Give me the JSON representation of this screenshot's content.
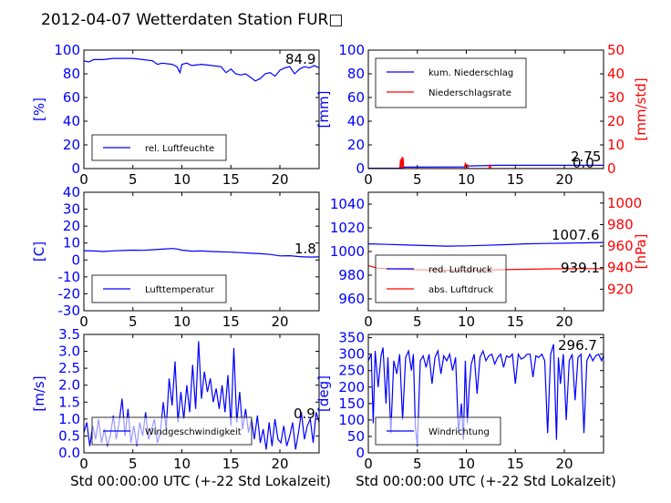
{
  "title": "2012-04-07 Wetterdaten Station FUR□",
  "xlabel": "Std 00:00:00 UTC (+-22 Std Lokalzeit)",
  "colors": {
    "blue": "#0000ff",
    "red": "#ff0000",
    "light_blue": "#8080ff"
  },
  "chart_data": [
    {
      "id": "humidity",
      "type": "line",
      "xlim": [
        0,
        24
      ],
      "xticks": [
        0,
        5,
        10,
        15,
        20
      ],
      "ylim": [
        0,
        100
      ],
      "yticks": [
        0,
        20,
        40,
        60,
        80,
        100
      ],
      "ylabel": "[%]",
      "last_value": "84.9",
      "series": [
        {
          "name": "rel. Luftfeuchte",
          "axis": "left",
          "color": "#0000ff",
          "x": [
            0,
            0.5,
            1,
            2,
            3,
            4,
            5,
            6,
            7,
            7.5,
            8,
            9,
            9.5,
            9.8,
            10,
            10.5,
            11,
            12,
            13,
            14,
            14.5,
            15,
            15.5,
            16,
            16.5,
            17,
            17.5,
            18,
            18.5,
            19,
            19.5,
            20,
            20.5,
            21,
            21.5,
            22,
            22.5,
            23,
            23.5,
            24
          ],
          "y": [
            91,
            90,
            92,
            92,
            93,
            93,
            93,
            92,
            91,
            88,
            89,
            88,
            86,
            81,
            88,
            89,
            87,
            88,
            87,
            86,
            81,
            84,
            80,
            79,
            80,
            77,
            74,
            76,
            80,
            81,
            78,
            83,
            85,
            86,
            80,
            84,
            86,
            85,
            87,
            85
          ]
        }
      ]
    },
    {
      "id": "precipitation",
      "type": "line",
      "xlim": [
        0,
        24
      ],
      "xticks": [
        0,
        5,
        10,
        15,
        20
      ],
      "ylim": [
        0,
        100
      ],
      "yticks": [
        0,
        20,
        40,
        60,
        80,
        100
      ],
      "ylabel": "[mm]",
      "y2lim": [
        0,
        50
      ],
      "y2ticks": [
        0,
        10,
        20,
        30,
        40,
        50
      ],
      "y2label": "[mm/std]",
      "last_values": [
        "2.75",
        "0.0"
      ],
      "series": [
        {
          "name": "kum. Niederschlag",
          "axis": "left",
          "color": "#0000ff",
          "x": [
            0,
            3.2,
            3.6,
            9.8,
            10.2,
            12.5,
            13,
            24
          ],
          "y": [
            0.3,
            0.3,
            1.2,
            1.4,
            2.2,
            2.6,
            2.75,
            2.75
          ]
        },
        {
          "name": "Niederschlagsrate",
          "axis": "right",
          "color": "#ff0000",
          "x": [
            0,
            3.2,
            3.3,
            3.35,
            3.45,
            3.5,
            3.55,
            3.6,
            3.7,
            9.8,
            9.9,
            10,
            10.1,
            10.2,
            12.3,
            12.4,
            12.5,
            12.6,
            24
          ],
          "y": [
            0,
            0,
            4,
            0.5,
            5,
            0.4,
            4.5,
            0.3,
            0,
            0,
            2.5,
            0.4,
            1.8,
            0,
            0,
            1.5,
            0.3,
            0,
            0
          ]
        }
      ]
    },
    {
      "id": "temperature",
      "type": "line",
      "xlim": [
        0,
        24
      ],
      "xticks": [
        0,
        5,
        10,
        15,
        20
      ],
      "ylim": [
        -30,
        40
      ],
      "yticks": [
        -30,
        -20,
        -10,
        0,
        10,
        20,
        30,
        40
      ],
      "ylabel": "[C]",
      "last_value": "1.8",
      "series": [
        {
          "name": "Lufttemperatur",
          "axis": "left",
          "color": "#0000ff",
          "x": [
            0,
            1,
            2,
            3,
            4,
            5,
            6,
            7,
            8,
            9,
            9.5,
            10,
            11,
            12,
            13,
            14,
            15,
            16,
            17,
            18,
            19,
            20,
            21,
            22,
            23,
            24
          ],
          "y": [
            5.5,
            5.3,
            5.0,
            5.4,
            5.6,
            5.8,
            5.7,
            6.0,
            6.4,
            6.8,
            6.5,
            5.8,
            5.2,
            5.3,
            5.0,
            4.8,
            4.6,
            4.3,
            4.0,
            3.7,
            3.3,
            2.4,
            2.5,
            2.0,
            1.7,
            1.8
          ]
        }
      ]
    },
    {
      "id": "pressure",
      "type": "line",
      "xlim": [
        0,
        24
      ],
      "xticks": [
        0,
        5,
        10,
        15,
        20
      ],
      "ylim": [
        950,
        1050
      ],
      "yticks": [
        960,
        980,
        1000,
        1020,
        1040
      ],
      "y2lim": [
        900,
        1010
      ],
      "y2ticks": [
        920,
        940,
        960,
        980,
        1000
      ],
      "y2label": "[hPa]",
      "last_values": [
        "1007.6",
        "939.1"
      ],
      "series": [
        {
          "name": "red. Luftdruck",
          "axis": "left",
          "color": "#0000ff",
          "x": [
            0,
            2,
            4,
            6,
            8,
            10,
            12,
            14,
            16,
            18,
            20,
            22,
            24
          ],
          "y": [
            1006.5,
            1006,
            1005.5,
            1005,
            1004.5,
            1004.8,
            1005.2,
            1005.8,
            1006.5,
            1006.8,
            1007,
            1007.3,
            1007.6
          ]
        },
        {
          "name": "abs. Luftdruck",
          "axis": "right",
          "color": "#ff0000",
          "x": [
            0,
            0.5,
            1,
            2,
            4,
            6,
            8,
            10,
            12,
            14,
            16,
            18,
            20,
            22,
            24
          ],
          "y": [
            942,
            940.5,
            939.5,
            939,
            938.3,
            937.8,
            937.5,
            937.5,
            937.8,
            938.2,
            938.5,
            938.8,
            939.0,
            939.1,
            939.1
          ]
        }
      ]
    },
    {
      "id": "wind_speed",
      "type": "line",
      "xlim": [
        0,
        24
      ],
      "xticks": [
        0,
        5,
        10,
        15,
        20
      ],
      "ylim": [
        0,
        3.5
      ],
      "yticks": [
        0.0,
        0.5,
        1.0,
        1.5,
        2.0,
        2.5,
        3.0,
        3.5
      ],
      "ylabel": "[m/s]",
      "last_value": "0.9",
      "series": [
        {
          "name": "Windgeschwindigkeit",
          "axis": "left",
          "color": "#0000ff",
          "x": [
            0,
            0.3,
            0.6,
            0.9,
            1.2,
            1.5,
            1.8,
            2.1,
            2.4,
            2.7,
            3.0,
            3.3,
            3.6,
            3.9,
            4.2,
            4.5,
            4.8,
            5.1,
            5.4,
            5.7,
            6.0,
            6.3,
            6.6,
            6.9,
            7.2,
            7.5,
            7.8,
            8.1,
            8.4,
            8.7,
            9.0,
            9.3,
            9.6,
            9.9,
            10.2,
            10.5,
            10.8,
            11.1,
            11.4,
            11.7,
            12.0,
            12.3,
            12.6,
            12.9,
            13.2,
            13.5,
            13.8,
            14.1,
            14.4,
            14.7,
            15.0,
            15.3,
            15.6,
            15.9,
            16.2,
            16.5,
            16.8,
            17.1,
            17.4,
            17.7,
            18.0,
            18.3,
            18.6,
            18.9,
            19.2,
            19.5,
            19.8,
            20.1,
            20.4,
            20.7,
            21.0,
            21.3,
            21.6,
            21.9,
            22.2,
            22.5,
            22.8,
            23.1,
            23.4,
            23.7,
            24.0
          ],
          "y": [
            0.6,
            0.9,
            0.2,
            0.8,
            0.4,
            1.0,
            0.3,
            0.7,
            0.2,
            0.5,
            1.1,
            0.4,
            0.9,
            1.6,
            0.5,
            1.3,
            0.3,
            0.8,
            0.2,
            0.9,
            0.5,
            1.2,
            0.4,
            0.7,
            1.0,
            0.3,
            0.6,
            1.5,
            0.7,
            2.2,
            1.4,
            2.7,
            0.9,
            1.8,
            1.0,
            2.0,
            1.2,
            2.6,
            1.3,
            3.3,
            1.6,
            2.4,
            1.8,
            2.2,
            1.5,
            1.9,
            1.3,
            2.0,
            1.2,
            2.3,
            0.8,
            3.1,
            0.9,
            1.8,
            0.7,
            1.3,
            0.6,
            1.0,
            0.4,
            1.1,
            0.3,
            0.7,
            0.1,
            0.9,
            0.2,
            1.0,
            0.4,
            0.3,
            0.8,
            0.2,
            0.5,
            0.9,
            0.1,
            0.6,
            1.2,
            0.4,
            0.8,
            1.0,
            0.3,
            1.2,
            0.9
          ]
        }
      ]
    },
    {
      "id": "wind_direction",
      "type": "line",
      "xlim": [
        0,
        24
      ],
      "xticks": [
        0,
        5,
        10,
        15,
        20
      ],
      "ylim": [
        0,
        360
      ],
      "yticks": [
        0,
        50,
        100,
        150,
        200,
        250,
        300,
        350
      ],
      "ylabel": "[deg]",
      "last_value": "296.7",
      "series": [
        {
          "name": "Windrichtung",
          "axis": "left",
          "color": "#0000ff",
          "x": [
            0,
            0.3,
            0.5,
            0.7,
            1.0,
            1.3,
            1.5,
            1.8,
            2.0,
            2.3,
            2.6,
            2.9,
            3.2,
            3.5,
            3.8,
            4.1,
            4.4,
            4.6,
            4.8,
            5.0,
            5.3,
            5.6,
            5.9,
            6.2,
            6.5,
            6.8,
            7.1,
            7.4,
            7.7,
            8.0,
            8.3,
            8.6,
            8.9,
            9.2,
            9.5,
            9.7,
            9.9,
            10.1,
            10.3,
            10.5,
            10.8,
            11.1,
            11.4,
            11.7,
            12.0,
            12.3,
            12.6,
            12.9,
            13.2,
            13.5,
            13.8,
            14.1,
            14.4,
            14.7,
            15.0,
            15.3,
            15.6,
            15.9,
            16.2,
            16.5,
            16.8,
            17.1,
            17.4,
            17.7,
            18.0,
            18.3,
            18.6,
            18.9,
            19.2,
            19.4,
            19.6,
            19.9,
            20.2,
            20.5,
            20.8,
            21.1,
            21.4,
            21.7,
            22.0,
            22.3,
            22.6,
            22.9,
            23.2,
            23.5,
            23.8,
            24.0
          ],
          "y": [
            280,
            300,
            90,
            310,
            200,
            295,
            320,
            150,
            290,
            60,
            280,
            240,
            300,
            100,
            290,
            310,
            250,
            300,
            80,
            20,
            280,
            295,
            260,
            300,
            210,
            290,
            310,
            240,
            295,
            280,
            300,
            250,
            290,
            60,
            150,
            40,
            280,
            90,
            200,
            270,
            300,
            180,
            290,
            310,
            280,
            295,
            300,
            270,
            290,
            300,
            260,
            295,
            290,
            300,
            210,
            300,
            285,
            290,
            300,
            300,
            230,
            295,
            290,
            300,
            280,
            60,
            300,
            330,
            40,
            290,
            210,
            300,
            100,
            280,
            300,
            160,
            290,
            300,
            60,
            280,
            300,
            280,
            295,
            300,
            280,
            296.7
          ]
        }
      ]
    }
  ]
}
